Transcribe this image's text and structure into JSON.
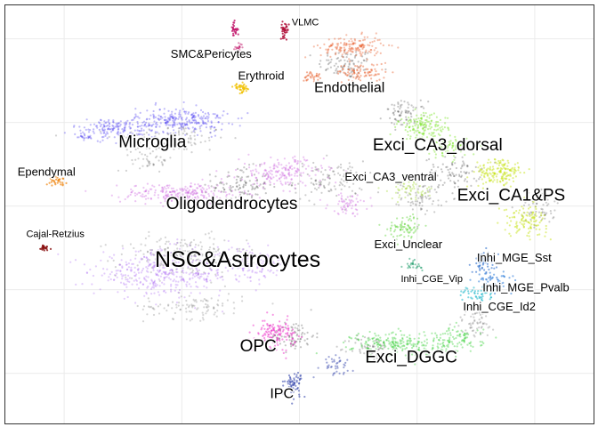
{
  "chart_data": {
    "type": "scatter",
    "title": "",
    "xlabel": "",
    "ylabel": "",
    "xlim": [
      0,
      100
    ],
    "ylim": [
      0,
      100
    ],
    "grid": true,
    "background_color": "#ffffff",
    "grid_color": "#ebebeb",
    "border_color": "#333333",
    "unlabeled_color": "#1a1a1a",
    "clusters": [
      {
        "name": "VLMC",
        "color": "#b0103a",
        "label_pos": [
          51,
          95.8
        ],
        "size": "small",
        "blobs": [
          [
            47.5,
            94.2,
            0.6,
            1.5,
            35,
            0.85
          ]
        ]
      },
      {
        "name": "SMC&Pericytes",
        "color": "#c2186b",
        "label_pos": [
          35,
          88.2
        ],
        "size": "medium",
        "blobs": [
          [
            38.9,
            94.2,
            0.5,
            1.5,
            30,
            0.8
          ],
          [
            39.6,
            90.0,
            0.6,
            0.7,
            18,
            0.5
          ]
        ]
      },
      {
        "name": "Erythroid",
        "color": "#f0c000",
        "label_pos": [
          43.5,
          83.0
        ],
        "size": "medium",
        "blobs": [
          [
            40.2,
            80.2,
            1.2,
            0.9,
            40,
            0.75
          ]
        ]
      },
      {
        "name": "Endothelial",
        "color": "#e8602c",
        "label_pos": [
          58.5,
          80.2
        ],
        "size": "large",
        "blobs": [
          [
            59.0,
            90.0,
            4.5,
            2.2,
            160,
            0.4
          ],
          [
            60.5,
            84.0,
            3.5,
            1.8,
            90,
            0.45
          ],
          [
            52.0,
            83.0,
            1.2,
            1.0,
            30,
            0.5
          ]
        ]
      },
      {
        "name": "Microglia",
        "color": "#4b3cf0",
        "label_pos": [
          25,
          67.1
        ],
        "size": "xlarge",
        "blobs": [
          [
            30.0,
            72.5,
            6.5,
            2.5,
            260,
            0.35
          ],
          [
            18.5,
            70.5,
            6.0,
            2.0,
            160,
            0.35
          ],
          [
            13.5,
            68.5,
            1.2,
            0.8,
            20,
            0.3
          ]
        ]
      },
      {
        "name": "Ependymal",
        "color": "#f08c1e",
        "label_pos": [
          7.0,
          60.0
        ],
        "size": "medium",
        "blobs": [
          [
            9.0,
            58.0,
            1.2,
            0.8,
            30,
            0.75
          ]
        ]
      },
      {
        "name": "Oligodendrocytes",
        "color": "#c040d8",
        "label_pos": [
          38.5,
          52.3
        ],
        "size": "xlarge",
        "blobs": [
          [
            30.0,
            55.0,
            8.5,
            2.0,
            240,
            0.3
          ],
          [
            47.0,
            60.0,
            6.0,
            3.0,
            180,
            0.3
          ],
          [
            58.5,
            52.5,
            3.0,
            2.0,
            60,
            0.3
          ]
        ]
      },
      {
        "name": "Cajal-Retzius",
        "color": "#8a1010",
        "label_pos": [
          8.5,
          45.2
        ],
        "size": "small",
        "blobs": [
          [
            6.5,
            42.0,
            0.9,
            0.8,
            25,
            0.8
          ]
        ]
      },
      {
        "name": "NSC&Astrocytes",
        "color": "#9a4cf0",
        "label_pos": [
          39.5,
          38.8
        ],
        "size": "xxlarge",
        "blobs": [
          [
            27.0,
            36.0,
            10.0,
            4.5,
            420,
            0.28
          ],
          [
            42.0,
            38.0,
            5.0,
            3.0,
            120,
            0.28
          ]
        ]
      },
      {
        "name": "OPC",
        "color": "#ee2cc8",
        "label_pos": [
          43.0,
          18.3
        ],
        "size": "xlarge",
        "blobs": [
          [
            46.0,
            21.5,
            2.8,
            2.8,
            130,
            0.5
          ]
        ]
      },
      {
        "name": "IPC",
        "color": "#2a3ca8",
        "label_pos": [
          47.0,
          7.0
        ],
        "size": "large",
        "blobs": [
          [
            49.0,
            9.5,
            1.2,
            2.5,
            60,
            0.55
          ],
          [
            56.0,
            14.0,
            2.5,
            2.0,
            40,
            0.45
          ]
        ]
      },
      {
        "name": "Exci_DGGC",
        "color": "#18c818",
        "label_pos": [
          69.0,
          15.6
        ],
        "size": "xlarge",
        "blobs": [
          [
            67.0,
            19.0,
            6.5,
            2.5,
            220,
            0.35
          ],
          [
            77.0,
            20.0,
            3.5,
            2.5,
            90,
            0.35
          ]
        ]
      },
      {
        "name": "Exci_CA3_dorsal",
        "color": "#6ee014",
        "label_pos": [
          73.5,
          66.4
        ],
        "size": "xlarge",
        "blobs": [
          [
            71.0,
            71.0,
            3.5,
            2.5,
            140,
            0.4
          ],
          [
            75.0,
            66.0,
            3.0,
            2.0,
            80,
            0.4
          ]
        ]
      },
      {
        "name": "Exci_CA3_ventral",
        "color": "#9ad820",
        "label_pos": [
          65.5,
          58.8
        ],
        "size": "medium",
        "blobs": [
          [
            69.0,
            56.0,
            3.0,
            2.0,
            60,
            0.35
          ]
        ]
      },
      {
        "name": "Exci_CA1&PS",
        "color": "#c2e000",
        "label_pos": [
          86.0,
          54.4
        ],
        "size": "xlarge",
        "blobs": [
          [
            84.0,
            60.0,
            3.5,
            2.8,
            160,
            0.45
          ],
          [
            88.5,
            48.5,
            3.0,
            3.0,
            110,
            0.45
          ]
        ]
      },
      {
        "name": "Exci_Unclear",
        "color": "#4ed020",
        "label_pos": [
          68.5,
          42.6
        ],
        "size": "medium",
        "blobs": [
          [
            68.0,
            47.0,
            2.5,
            2.5,
            80,
            0.4
          ]
        ]
      },
      {
        "name": "Inhi_MGE_Sst",
        "color": "#1e64c8",
        "label_pos": [
          86.5,
          39.5
        ],
        "size": "medium",
        "blobs": [
          [
            81.5,
            38.5,
            1.8,
            2.2,
            60,
            0.55
          ]
        ]
      },
      {
        "name": "Inhi_CGE_Vip",
        "color": "#149864",
        "label_pos": [
          72.5,
          34.4
        ],
        "size": "small",
        "blobs": [
          [
            69.5,
            38.0,
            1.2,
            1.2,
            25,
            0.5
          ]
        ]
      },
      {
        "name": "Inhi_MGE_Pvalb",
        "color": "#2a7ad8",
        "label_pos": [
          88.5,
          32.3
        ],
        "size": "medium",
        "blobs": [
          [
            83.0,
            34.0,
            2.5,
            1.8,
            50,
            0.55
          ]
        ]
      },
      {
        "name": "Inhi_CGE_Id2",
        "color": "#16b4c8",
        "label_pos": [
          84.0,
          27.7
        ],
        "size": "medium",
        "blobs": [
          [
            80.0,
            31.0,
            2.5,
            1.6,
            50,
            0.55
          ]
        ]
      }
    ],
    "unlabeled_blobs": [
      [
        58.0,
        86.0,
        4.0,
        3.0,
        90,
        0.25
      ],
      [
        28.0,
        68.0,
        8.0,
        3.0,
        120,
        0.2
      ],
      [
        40.0,
        57.0,
        4.0,
        3.5,
        110,
        0.25
      ],
      [
        55.0,
        58.0,
        5.0,
        4.0,
        110,
        0.22
      ],
      [
        68.0,
        74.0,
        3.0,
        2.5,
        70,
        0.25
      ],
      [
        76.0,
        60.0,
        4.0,
        3.0,
        90,
        0.25
      ],
      [
        71.0,
        54.0,
        3.0,
        3.0,
        70,
        0.22
      ],
      [
        30.0,
        40.0,
        9.0,
        4.0,
        220,
        0.18
      ],
      [
        49.0,
        21.0,
        3.0,
        3.0,
        80,
        0.25
      ],
      [
        62.0,
        18.0,
        3.0,
        2.5,
        60,
        0.22
      ],
      [
        80.0,
        24.0,
        3.0,
        3.0,
        60,
        0.2
      ],
      [
        91.0,
        52.0,
        3.0,
        4.0,
        70,
        0.22
      ],
      [
        32.0,
        28.0,
        7.0,
        2.5,
        100,
        0.18
      ],
      [
        25.0,
        63.0,
        3.0,
        2.0,
        40,
        0.2
      ]
    ]
  }
}
